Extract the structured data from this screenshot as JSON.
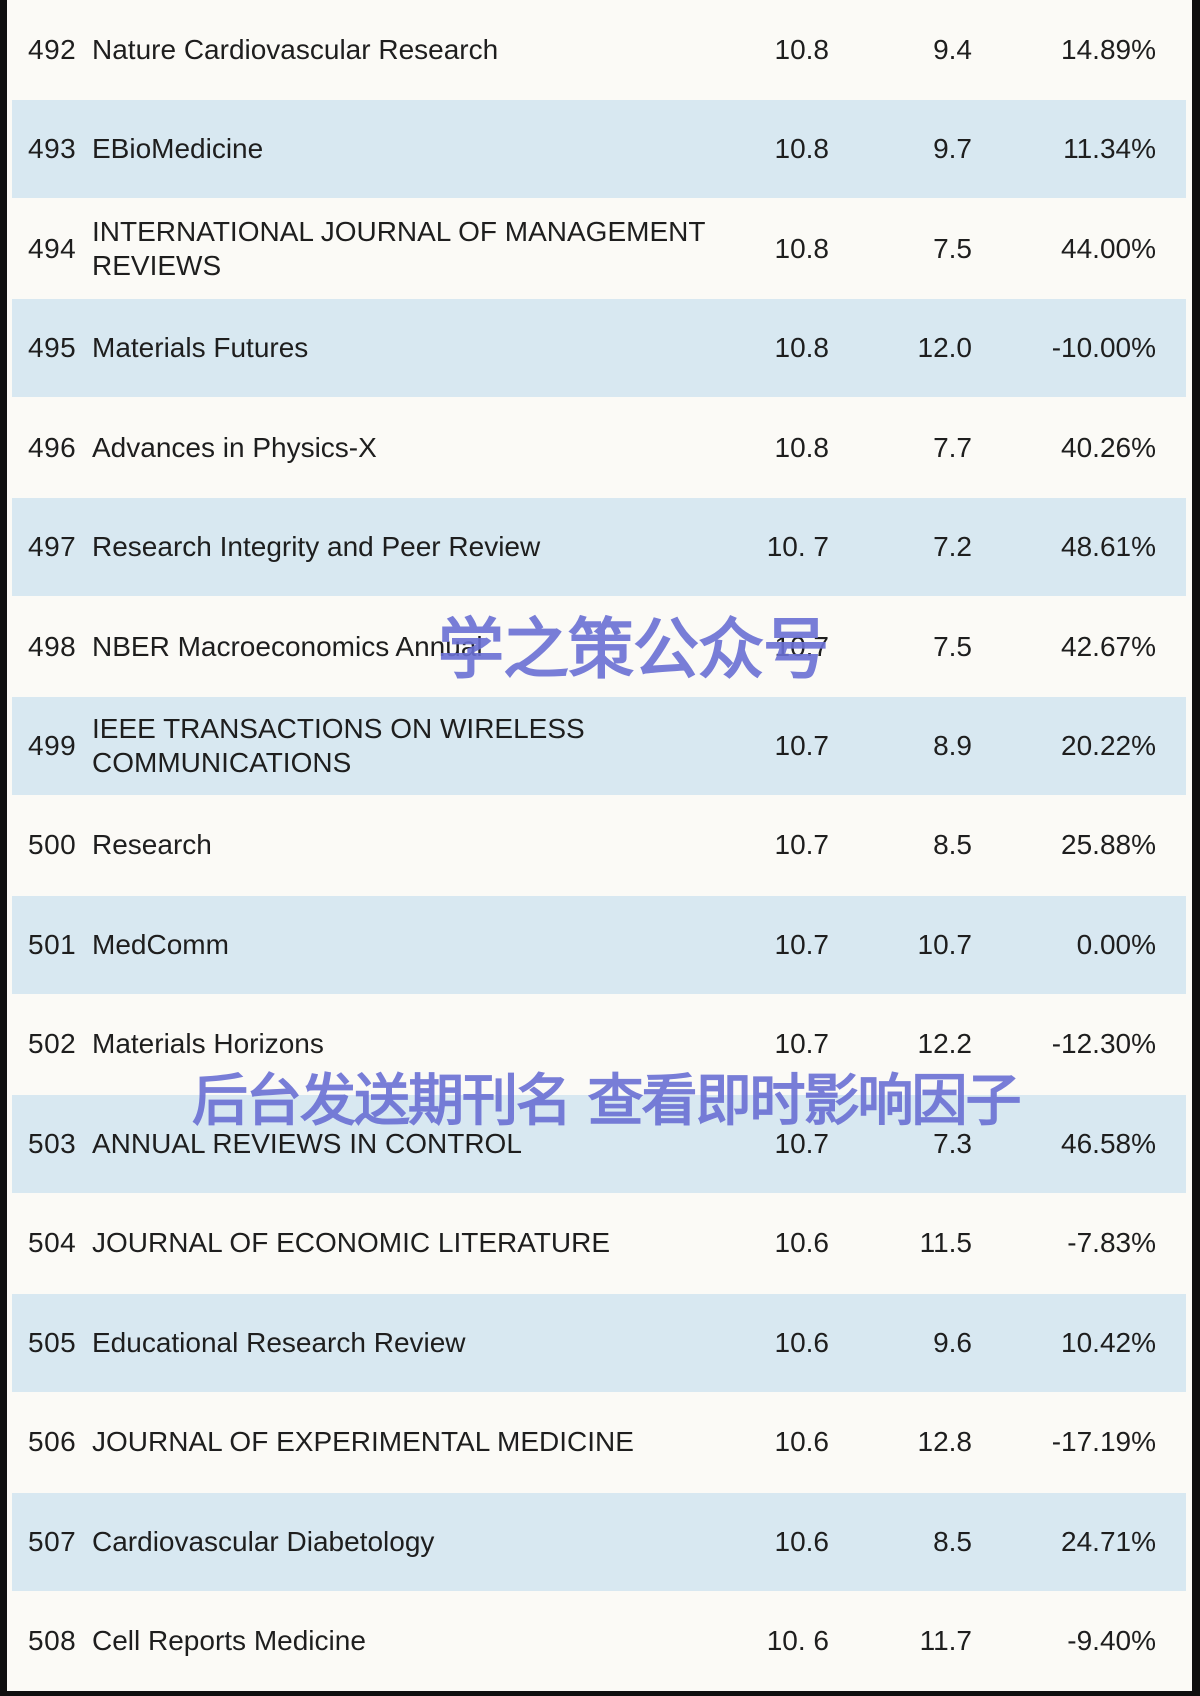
{
  "page": {
    "background_color": "#fbfaf6",
    "row_alt_color": "#d8e8f1",
    "frame_border_color": "#0f0f0f",
    "text_color": "#1e1e1e"
  },
  "watermarks": {
    "center": {
      "text": "学之策公众号",
      "color": "#6a70d4"
    },
    "lower": {
      "text": "后台发送期刊名 查看即时影响因子",
      "color": "#6a70d4"
    }
  },
  "table": {
    "rows": [
      {
        "rank": "492",
        "journal": "Nature Cardiovascular Research",
        "if_current": "10.8",
        "if_previous": "9.4",
        "change": "14.89%"
      },
      {
        "rank": "493",
        "journal": "EBioMedicine",
        "if_current": "10.8",
        "if_previous": "9.7",
        "change": "11.34%"
      },
      {
        "rank": "494",
        "journal": "INTERNATIONAL JOURNAL OF MANAGEMENT REVIEWS",
        "if_current": "10.8",
        "if_previous": "7.5",
        "change": "44.00%"
      },
      {
        "rank": "495",
        "journal": "Materials Futures",
        "if_current": "10.8",
        "if_previous": "12.0",
        "change": "-10.00%"
      },
      {
        "rank": "496",
        "journal": "Advances in Physics-X",
        "if_current": "10.8",
        "if_previous": "7.7",
        "change": "40.26%"
      },
      {
        "rank": "497",
        "journal": "Research Integrity and Peer Review",
        "if_current": "10. 7",
        "if_previous": "7.2",
        "change": "48.61%"
      },
      {
        "rank": "498",
        "journal": "NBER Macroeconomics Annual",
        "if_current": "10.7",
        "if_previous": "7.5",
        "change": "42.67%"
      },
      {
        "rank": "499",
        "journal": "IEEE TRANSACTIONS ON WIRELESS COMMUNICATIONS",
        "if_current": "10.7",
        "if_previous": "8.9",
        "change": "20.22%"
      },
      {
        "rank": "500",
        "journal": "Research",
        "if_current": "10.7",
        "if_previous": "8.5",
        "change": "25.88%"
      },
      {
        "rank": "501",
        "journal": "MedComm",
        "if_current": "10.7",
        "if_previous": "10.7",
        "change": "0.00%"
      },
      {
        "rank": "502",
        "journal": "Materials Horizons",
        "if_current": "10.7",
        "if_previous": "12.2",
        "change": "-12.30%"
      },
      {
        "rank": "503",
        "journal": "ANNUAL REVIEWS IN CONTROL",
        "if_current": "10.7",
        "if_previous": "7.3",
        "change": "46.58%"
      },
      {
        "rank": "504",
        "journal": "JOURNAL OF ECONOMIC LITERATURE",
        "if_current": "10.6",
        "if_previous": "11.5",
        "change": "-7.83%"
      },
      {
        "rank": "505",
        "journal": "Educational Research Review",
        "if_current": "10.6",
        "if_previous": "9.6",
        "change": "10.42%"
      },
      {
        "rank": "506",
        "journal": "JOURNAL OF EXPERIMENTAL MEDICINE",
        "if_current": "10.6",
        "if_previous": "12.8",
        "change": "-17.19%"
      },
      {
        "rank": "507",
        "journal": "Cardiovascular Diabetology",
        "if_current": "10.6",
        "if_previous": "8.5",
        "change": "24.71%"
      },
      {
        "rank": "508",
        "journal": "Cell Reports Medicine",
        "if_current": "10. 6",
        "if_previous": "11.7",
        "change": "-9.40%"
      }
    ]
  }
}
